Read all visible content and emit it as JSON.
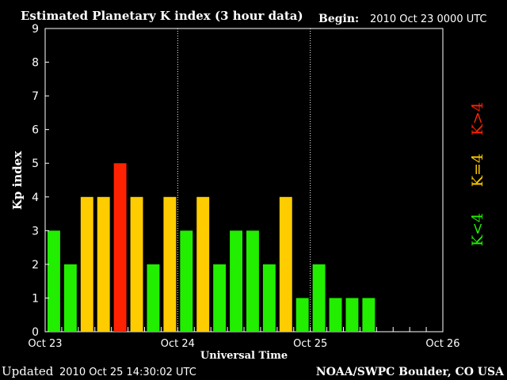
{
  "header": {
    "title": "Estimated Planetary K index (3 hour data)",
    "begin_label": "Begin:",
    "begin_value": "2010 Oct 23 0000 UTC"
  },
  "footer": {
    "updated_label": "Updated",
    "updated_value": "2010 Oct 25 14:30:02 UTC",
    "source": "NOAA/SWPC Boulder, CO USA"
  },
  "legend": {
    "low": "K<4",
    "equal": "K=4",
    "high": "K>4"
  },
  "colors": {
    "background": "#000000",
    "axis": "#ffffff",
    "text": "#ffffff",
    "low": "#22ee00",
    "equal": "#ffcc00",
    "high": "#ff2200"
  },
  "chart_data": {
    "type": "bar",
    "ylabel": "Kp index",
    "xlabel": "Universal Time",
    "ylim": [
      0,
      9
    ],
    "yticks": [
      0,
      1,
      2,
      3,
      4,
      5,
      6,
      7,
      8,
      9
    ],
    "day_labels": [
      "Oct 23",
      "Oct 24",
      "Oct 25",
      "Oct 26"
    ],
    "intervals_per_day": 8,
    "values": [
      3,
      2,
      4,
      4,
      5,
      4,
      2,
      4,
      3,
      4,
      2,
      3,
      3,
      2,
      4,
      1,
      2,
      1,
      1,
      1
    ]
  }
}
